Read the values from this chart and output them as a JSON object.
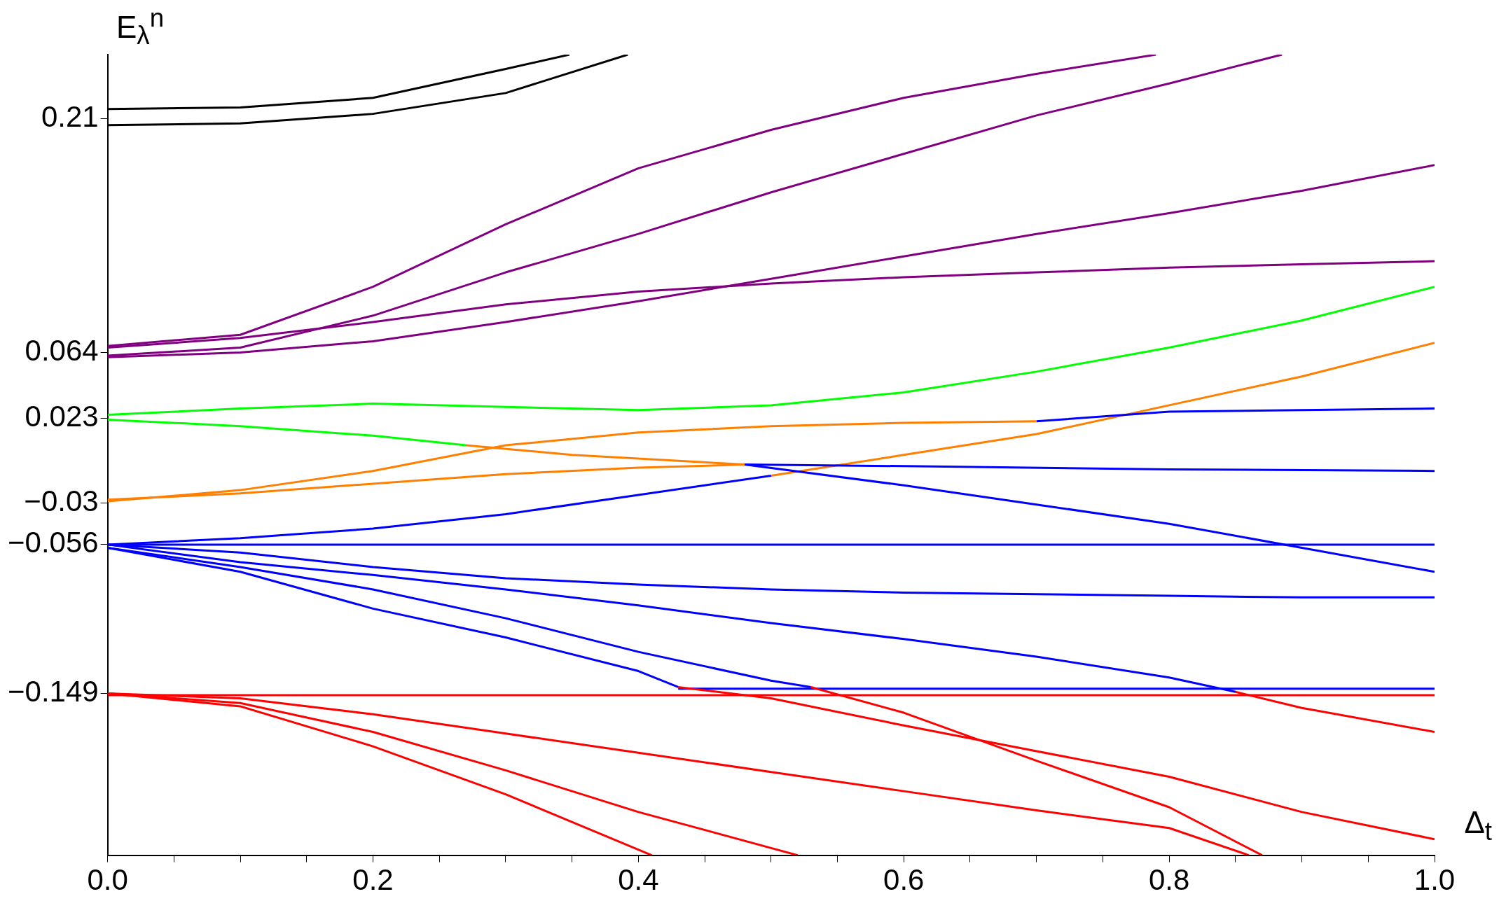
{
  "chart_data": {
    "type": "line",
    "xlabel": "Δ$_{t}$",
    "ylabel": "E$_{λ}$$^{n}$",
    "xlim": [
      0,
      1
    ],
    "ylim": [
      -0.25,
      0.25
    ],
    "xticks": [
      {
        "value": 0,
        "label": "0.0"
      },
      {
        "value": 0.05,
        "label": null
      },
      {
        "value": 0.1,
        "label": null
      },
      {
        "value": 0.15,
        "label": null
      },
      {
        "value": 0.2,
        "label": "0.2"
      },
      {
        "value": 0.25,
        "label": null
      },
      {
        "value": 0.3,
        "label": null
      },
      {
        "value": 0.35,
        "label": null
      },
      {
        "value": 0.4,
        "label": "0.4"
      },
      {
        "value": 0.45,
        "label": null
      },
      {
        "value": 0.5,
        "label": null
      },
      {
        "value": 0.55,
        "label": null
      },
      {
        "value": 0.6,
        "label": "0.6"
      },
      {
        "value": 0.65,
        "label": null
      },
      {
        "value": 0.7,
        "label": null
      },
      {
        "value": 0.75,
        "label": null
      },
      {
        "value": 0.8,
        "label": "0.8"
      },
      {
        "value": 0.85,
        "label": null
      },
      {
        "value": 0.9,
        "label": null
      },
      {
        "value": 0.95,
        "label": null
      },
      {
        "value": 1,
        "label": "1.0"
      }
    ],
    "yticks": [
      {
        "value": -0.149,
        "label": "−0.149"
      },
      {
        "value": -0.056,
        "label": "−0.056"
      },
      {
        "value": -0.03,
        "label": "−0.03"
      },
      0.023,
      0.064,
      0.21
    ],
    "grid": false,
    "legend": false,
    "series": [
      {
        "color": "#000000",
        "x": [
          0,
          0.1,
          0.2,
          0.3,
          0.348
        ],
        "values": [
          0.216,
          0.217,
          0.223,
          0.241,
          0.25
        ]
      },
      {
        "color": "#000000",
        "x": [
          0,
          0.1,
          0.2,
          0.3,
          0.392
        ],
        "values": [
          0.206,
          0.207,
          0.213,
          0.226,
          0.25
        ]
      },
      {
        "color": "#800080",
        "x": [
          0,
          0.1,
          0.2,
          0.3,
          0.4,
          0.5,
          0.6,
          0.7,
          0.79
        ],
        "values": [
          0.068,
          0.075,
          0.105,
          0.144,
          0.179,
          0.203,
          0.223,
          0.238,
          0.25
        ]
      },
      {
        "color": "#800080",
        "x": [
          0,
          0.1,
          0.2,
          0.3,
          0.4,
          0.5,
          0.6,
          0.7,
          0.8,
          0.885
        ],
        "values": [
          0.062,
          0.067,
          0.087,
          0.114,
          0.138,
          0.164,
          0.188,
          0.212,
          0.232,
          0.25
        ]
      },
      {
        "color": "#800080",
        "x": [
          0,
          0.1,
          0.2,
          0.3,
          0.4,
          0.5,
          0.6,
          0.7,
          0.8,
          0.9,
          1
        ],
        "values": [
          0.061,
          0.064,
          0.071,
          0.083,
          0.096,
          0.11,
          0.124,
          0.138,
          0.151,
          0.165,
          0.181
        ]
      },
      {
        "color": "#800080",
        "x": [
          0,
          0.1,
          0.2,
          0.3,
          0.4,
          0.5,
          0.6,
          0.7,
          0.8,
          0.9,
          1
        ],
        "values": [
          0.067,
          0.073,
          0.083,
          0.094,
          0.102,
          0.107,
          0.111,
          0.114,
          0.117,
          0.119,
          0.121
        ]
      },
      {
        "color": "#00ff00",
        "x": [
          0,
          0.1,
          0.2,
          0.3,
          0.4,
          0.5,
          0.6,
          0.7,
          0.8,
          0.9,
          1
        ],
        "values": [
          0.025,
          0.029,
          0.032,
          0.03,
          0.028,
          0.031,
          0.039,
          0.052,
          0.067,
          0.084,
          0.105
        ]
      },
      {
        "color": "#00ff00",
        "x": [
          0,
          0.1,
          0.2,
          0.27
        ],
        "values": [
          0.022,
          0.018,
          0.012,
          0.006
        ]
      },
      {
        "color": "#ff8000",
        "x": [
          0.27,
          0.35,
          0.48
        ],
        "values": [
          0.006,
          0,
          -0.006
        ]
      },
      {
        "color": "#0000ff",
        "x": [
          0.48,
          0.6,
          0.8,
          1
        ],
        "values": [
          -0.006,
          -0.007,
          -0.009,
          -0.01
        ]
      },
      {
        "color": "#ff8000",
        "x": [
          0,
          0.1,
          0.2,
          0.3,
          0.4,
          0.48
        ],
        "values": [
          -0.028,
          -0.024,
          -0.018,
          -0.012,
          -0.008,
          -0.006
        ]
      },
      {
        "color": "#0000ff",
        "x": [
          0.48,
          0.6,
          0.7,
          0.8,
          0.9,
          1
        ],
        "values": [
          -0.006,
          -0.019,
          -0.031,
          -0.043,
          -0.058,
          -0.073
        ]
      },
      {
        "color": "#ff8000",
        "x": [
          0,
          0.1,
          0.2,
          0.3,
          0.4,
          0.5,
          0.6,
          0.7
        ],
        "values": [
          -0.029,
          -0.022,
          -0.01,
          0.006,
          0.014,
          0.018,
          0.02,
          0.021
        ]
      },
      {
        "color": "#0000ff",
        "x": [
          0.7,
          0.8,
          0.9,
          1
        ],
        "values": [
          0.021,
          0.027,
          0.028,
          0.029
        ]
      },
      {
        "color": "#0000ff",
        "x": [
          0,
          0.1,
          0.2,
          0.3,
          0.4,
          0.5
        ],
        "values": [
          -0.056,
          -0.052,
          -0.046,
          -0.037,
          -0.025,
          -0.013
        ]
      },
      {
        "color": "#ff8000",
        "x": [
          0.5,
          0.6,
          0.7,
          0.8,
          0.9,
          1
        ],
        "values": [
          -0.013,
          0,
          0.013,
          0.031,
          0.049,
          0.07
        ]
      },
      {
        "color": "#0000ff",
        "x": [
          0,
          0.5,
          1
        ],
        "values": [
          -0.056,
          -0.056,
          -0.056
        ]
      },
      {
        "color": "#0000ff",
        "x": [
          0,
          0.1,
          0.2,
          0.3,
          0.4,
          0.5,
          0.6,
          0.7,
          0.8,
          0.9,
          1
        ],
        "values": [
          -0.056,
          -0.061,
          -0.07,
          -0.077,
          -0.081,
          -0.084,
          -0.086,
          -0.087,
          -0.088,
          -0.089,
          -0.089
        ]
      },
      {
        "color": "#0000ff",
        "x": [
          0,
          0.1,
          0.2,
          0.3,
          0.4,
          0.5,
          0.6,
          0.7,
          0.8,
          0.85
        ],
        "values": [
          -0.056,
          -0.067,
          -0.075,
          -0.084,
          -0.094,
          -0.105,
          -0.115,
          -0.126,
          -0.139,
          -0.148
        ]
      },
      {
        "color": "#ff0000",
        "x": [
          0.85,
          0.9,
          1
        ],
        "values": [
          -0.148,
          -0.158,
          -0.173
        ]
      },
      {
        "color": "#0000ff",
        "x": [
          0,
          0.1,
          0.2,
          0.3,
          0.4,
          0.43
        ],
        "values": [
          -0.058,
          -0.073,
          -0.096,
          -0.114,
          -0.135,
          -0.145
        ]
      },
      {
        "color": "#ff0000",
        "x": [
          0.43,
          0.5,
          0.6,
          0.7,
          0.8,
          0.9,
          1
        ],
        "values": [
          -0.145,
          -0.152,
          -0.169,
          -0.185,
          -0.201,
          -0.223,
          -0.24
        ]
      },
      {
        "color": "#0000ff",
        "x": [
          0,
          0.1,
          0.2,
          0.3,
          0.4,
          0.5,
          0.53
        ],
        "values": [
          -0.058,
          -0.07,
          -0.084,
          -0.102,
          -0.123,
          -0.141,
          -0.145
        ]
      },
      {
        "color": "#ff0000",
        "x": [
          0.53,
          0.6,
          0.7,
          0.8,
          0.87
        ],
        "values": [
          -0.145,
          -0.161,
          -0.191,
          -0.22,
          -0.25
        ]
      },
      {
        "color": "#0000ff",
        "x": [
          0.43,
          1
        ],
        "values": [
          -0.146,
          -0.146
        ]
      },
      {
        "color": "#ff0000",
        "x": [
          0,
          1
        ],
        "values": [
          -0.15,
          -0.15
        ]
      },
      {
        "color": "#ff0000",
        "x": [
          0,
          0.1,
          0.2,
          0.3,
          0.4,
          0.5,
          0.6,
          0.7,
          0.8,
          0.86
        ],
        "values": [
          -0.149,
          -0.152,
          -0.162,
          -0.174,
          -0.186,
          -0.198,
          -0.21,
          -0.222,
          -0.233,
          -0.25
        ]
      },
      {
        "color": "#ff0000",
        "x": [
          0,
          0.1,
          0.2,
          0.3,
          0.4,
          0.52
        ],
        "values": [
          -0.149,
          -0.155,
          -0.173,
          -0.197,
          -0.223,
          -0.25
        ]
      },
      {
        "color": "#ff0000",
        "x": [
          0,
          0.1,
          0.2,
          0.3,
          0.41
        ],
        "values": [
          -0.149,
          -0.157,
          -0.182,
          -0.212,
          -0.25
        ]
      }
    ]
  }
}
